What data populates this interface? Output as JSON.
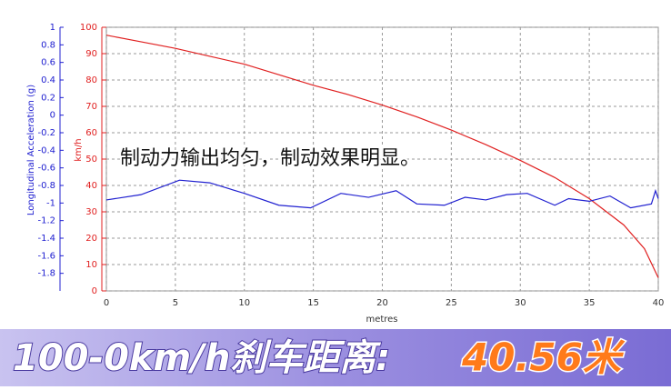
{
  "chart_data": {
    "type": "line",
    "annotation": "制动力输出均匀，制动效果明显。",
    "x_label": "metres",
    "y_label": "km/h",
    "y2_label": "Longitudinal Acceleration (g)",
    "xlim": [
      0,
      40
    ],
    "xticks": [
      0,
      5,
      10,
      15,
      20,
      25,
      30,
      35,
      40
    ],
    "ylim": [
      0,
      100
    ],
    "yticks": [
      0,
      10,
      20,
      30,
      40,
      50,
      60,
      70,
      80,
      90,
      100
    ],
    "y2lim": [
      -2,
      1
    ],
    "y2ticks": [
      1,
      0.8,
      0.6,
      0.4,
      0.2,
      0,
      -0.2,
      -0.4,
      -0.6,
      -0.8,
      -1,
      -1.2,
      -1.4,
      -1.6,
      -1.8
    ],
    "grid": true,
    "series": [
      {
        "name": "km/h",
        "color": "#e02020",
        "x": [
          0,
          2.5,
          5,
          7.5,
          10,
          12.5,
          15,
          17.5,
          20,
          22.5,
          25,
          27.5,
          30,
          32.5,
          35,
          37.5,
          39,
          40
        ],
        "values": [
          97,
          94.5,
          92,
          89,
          86,
          82,
          78,
          74.5,
          70.5,
          66,
          61,
          55.5,
          49.5,
          43,
          35,
          25,
          16,
          5
        ]
      },
      {
        "name": "Longitudinal Acceleration (g)",
        "color": "#2020d0",
        "axis": "y2",
        "x": [
          0,
          2.5,
          5.3,
          7.5,
          10,
          12.5,
          14.8,
          17,
          19,
          21,
          22.5,
          24.5,
          26,
          27.5,
          29,
          30.5,
          32.5,
          33.5,
          35,
          36.5,
          38,
          39.5,
          39.8,
          40
        ],
        "values": [
          -0.965,
          -0.905,
          -0.74,
          -0.77,
          -0.89,
          -1.025,
          -1.055,
          -0.89,
          -0.935,
          -0.86,
          -1.01,
          -1.025,
          -0.935,
          -0.965,
          -0.905,
          -0.89,
          -1.025,
          -0.95,
          -0.98,
          -0.92,
          -1.055,
          -1.01,
          -0.86,
          -0.95
        ]
      }
    ],
    "banner": {
      "title": "100-0km/h刹车距离:",
      "result": "40.56米"
    }
  }
}
